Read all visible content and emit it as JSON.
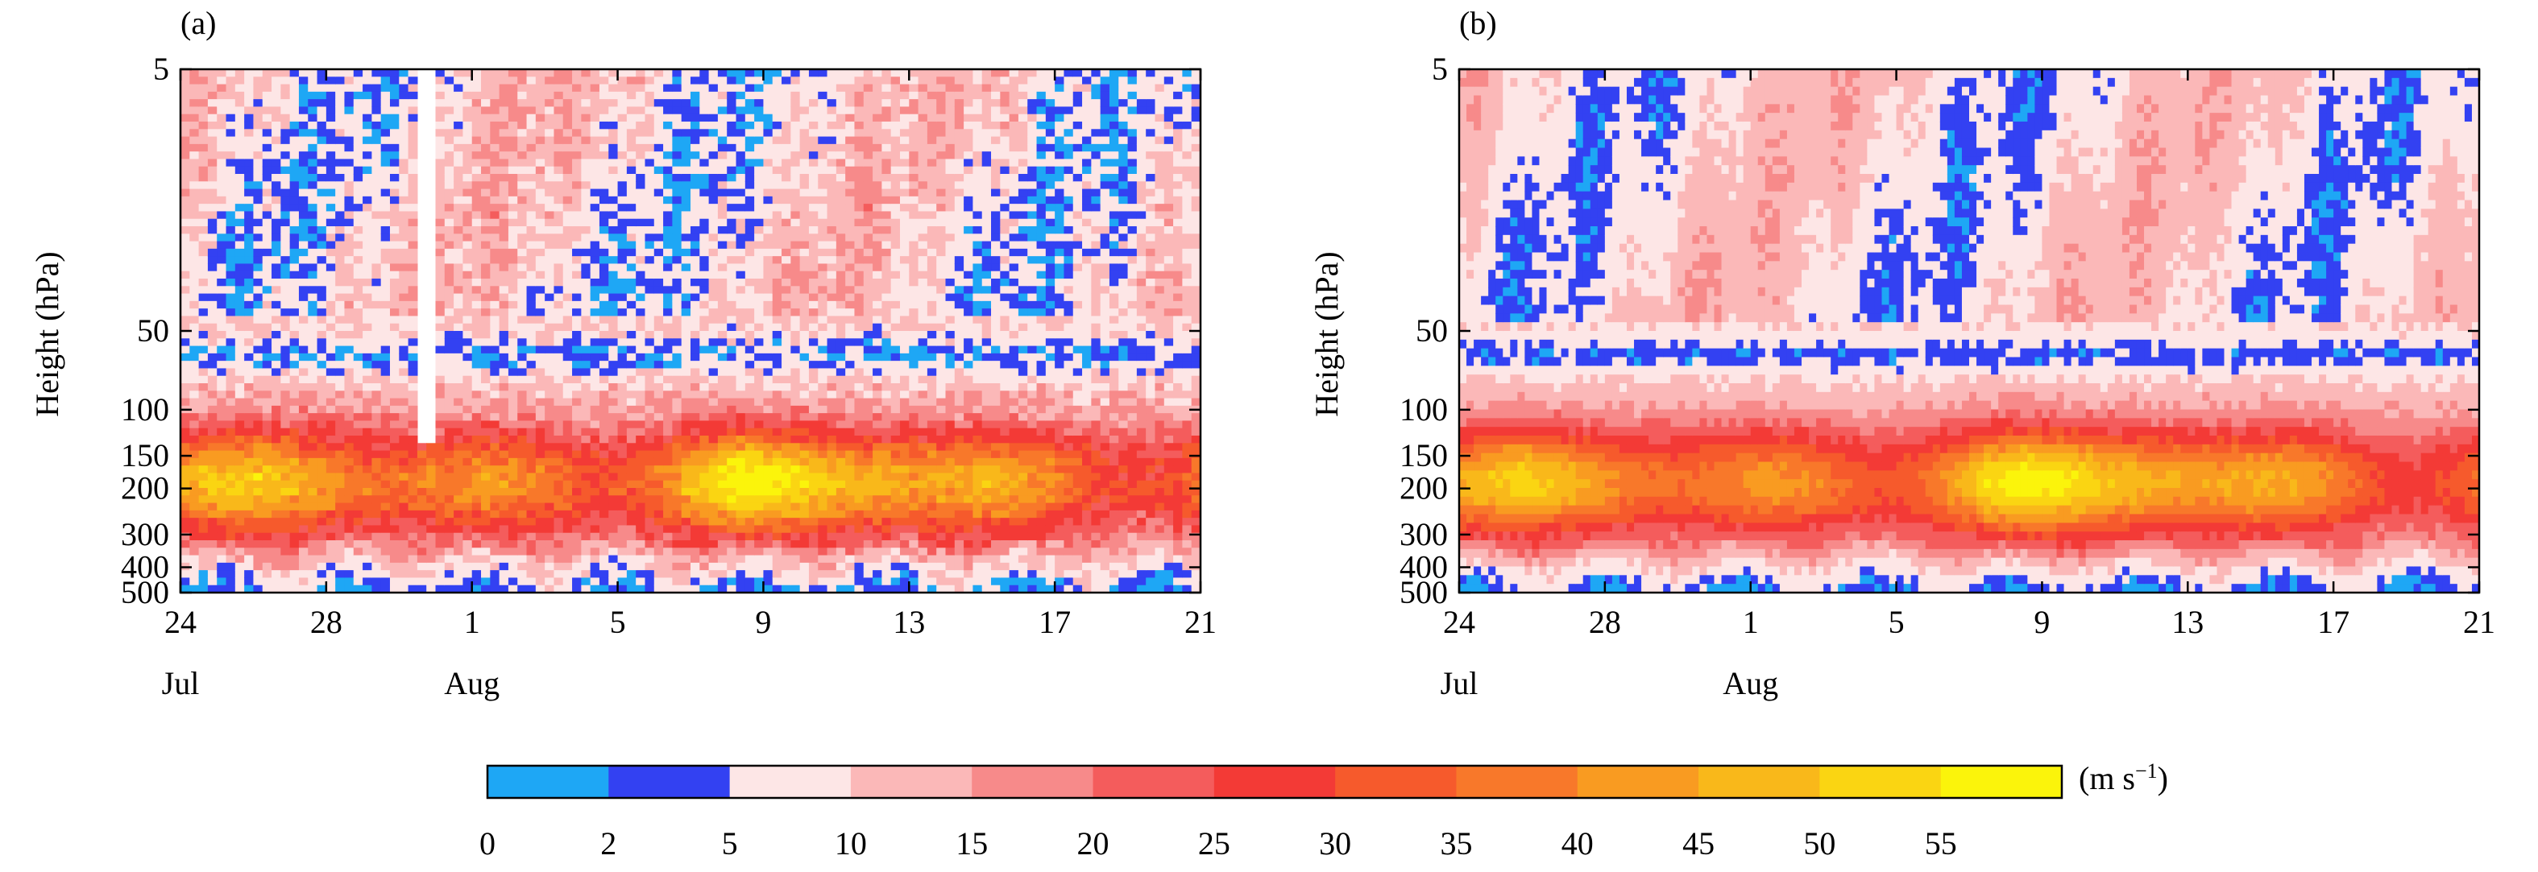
{
  "chart_data": [
    {
      "type": "heatmap",
      "panel_label": "(a)",
      "ylabel": "Height (hPa)",
      "y_scale": "log-pressure",
      "y_ticks": [
        5,
        50,
        100,
        150,
        200,
        300,
        400,
        500
      ],
      "ylim": [
        500,
        5
      ],
      "x_tick_labels": [
        "24",
        "28",
        "1",
        "5",
        "9",
        "13",
        "17",
        "21"
      ],
      "x_month_labels": [
        {
          "label": "Jul",
          "at": "24"
        },
        {
          "label": "Aug",
          "at": "1"
        }
      ],
      "xlim": [
        "24 Jul",
        "21 Aug"
      ],
      "style": "banded"
    },
    {
      "type": "heatmap",
      "panel_label": "(b)",
      "ylabel": "Height (hPa)",
      "y_scale": "log-pressure",
      "y_ticks": [
        5,
        50,
        100,
        150,
        200,
        300,
        400,
        500
      ],
      "ylim": [
        500,
        5
      ],
      "x_tick_labels": [
        "24",
        "28",
        "1",
        "5",
        "9",
        "13",
        "17",
        "21"
      ],
      "x_month_labels": [
        {
          "label": "Jul",
          "at": "24"
        },
        {
          "label": "Aug",
          "at": "1"
        }
      ],
      "xlim": [
        "24 Jul",
        "21 Aug"
      ],
      "style": "smooth"
    }
  ],
  "colorbar": {
    "boundaries": [
      "0",
      "2",
      "5",
      "10",
      "15",
      "20",
      "25",
      "30",
      "35",
      "40",
      "45",
      "50",
      "55"
    ],
    "colors": [
      "#1ea7f5",
      "#3341f2",
      "#fde6e6",
      "#fbb8b8",
      "#f78a8a",
      "#f45c5c",
      "#f33a36",
      "#f65a2c",
      "#f8782a",
      "#f99b21",
      "#f9b81a",
      "#fad512",
      "#fbf40b"
    ],
    "unit_text": "(m s",
    "unit_exp": "−1",
    "unit_close": ")"
  }
}
